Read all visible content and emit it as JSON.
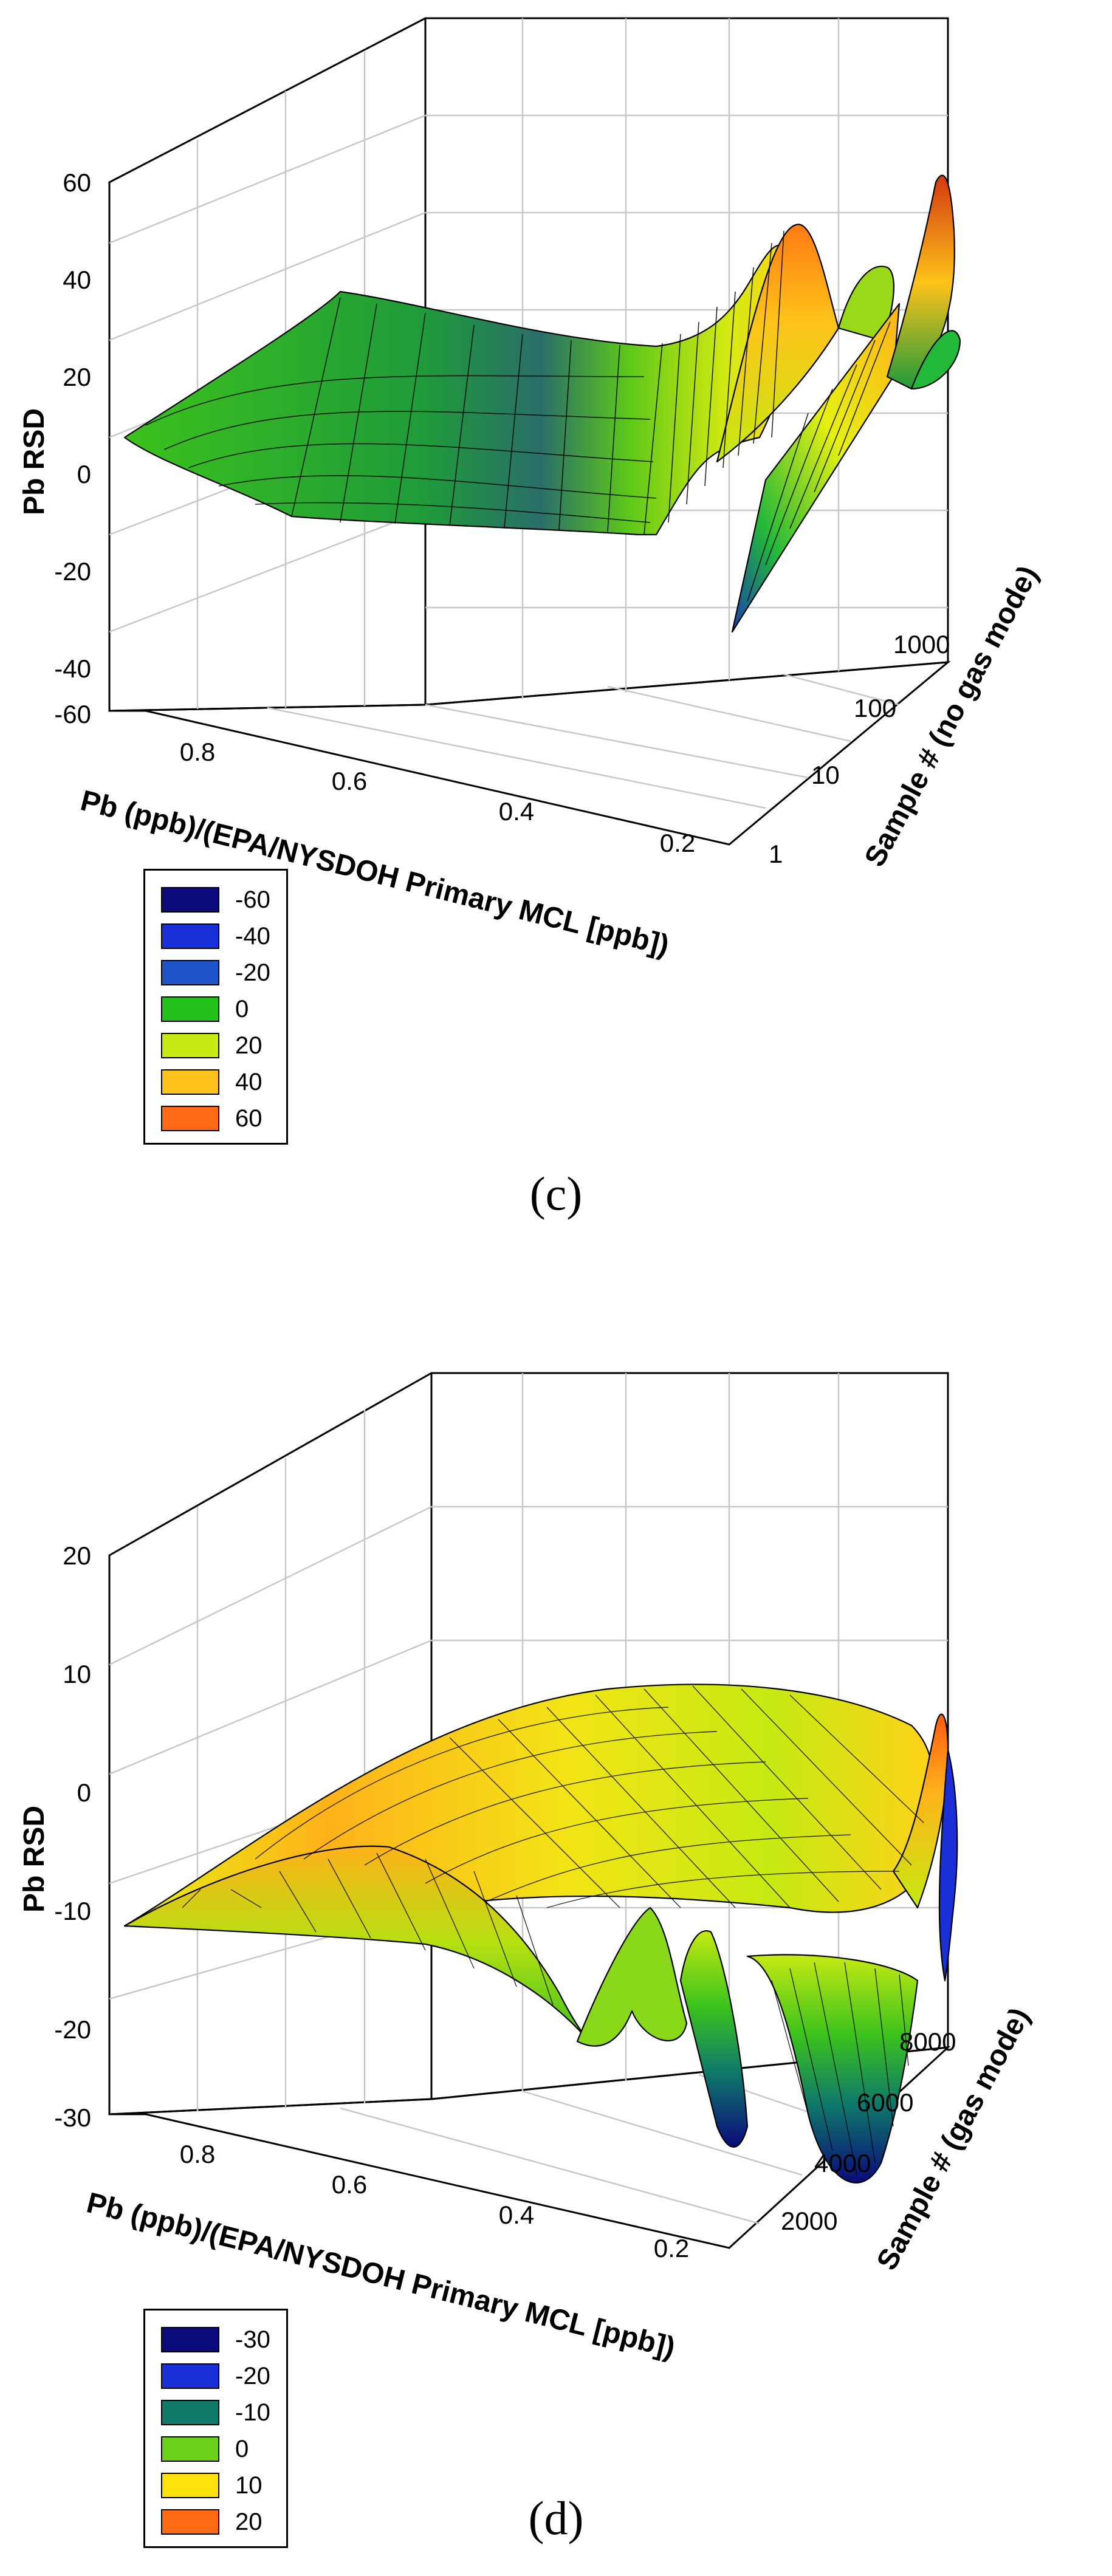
{
  "chart_data": [
    {
      "type": "surface3d",
      "panel_label": "(c)",
      "zlabel": "Pb RSD",
      "xlabel": "Pb (ppb)/(EPA/NYSDOH Primary MCL [ppb])",
      "ylabel": "Sample # (no gas mode)",
      "z_ticks": [
        "60",
        "40",
        "20",
        "0",
        "-20",
        "-40",
        "-60"
      ],
      "zlim": [
        -60,
        60
      ],
      "x_ticks": [
        "0.8",
        "0.6",
        "0.4",
        "0.2"
      ],
      "y_ticks": [
        "1",
        "10",
        "100",
        "1000"
      ],
      "y_scale": "log",
      "legend": [
        {
          "label": "-60",
          "color": "#0a0a7a"
        },
        {
          "label": "-40",
          "color": "#1a2fd6"
        },
        {
          "label": "-20",
          "color": "#1f55c8"
        },
        {
          "label": "0",
          "color": "#22c01a"
        },
        {
          "label": "20",
          "color": "#c6ea12"
        },
        {
          "label": "40",
          "color": "#ffc21a"
        },
        {
          "label": "60",
          "color": "#ff6a14"
        }
      ]
    },
    {
      "type": "surface3d",
      "panel_label": "(d)",
      "zlabel": "Pb RSD",
      "xlabel": "Pb (ppb)/(EPA/NYSDOH Primary MCL [ppb])",
      "ylabel": "Sample # (gas mode)",
      "z_ticks": [
        "20",
        "10",
        "0",
        "-10",
        "-20",
        "-30"
      ],
      "zlim": [
        -30,
        20
      ],
      "x_ticks": [
        "0.8",
        "0.6",
        "0.4",
        "0.2"
      ],
      "y_ticks": [
        "2000",
        "4000",
        "6000",
        "8000"
      ],
      "y_scale": "linear",
      "legend": [
        {
          "label": "-30",
          "color": "#0a0a7a"
        },
        {
          "label": "-20",
          "color": "#1a2fd6"
        },
        {
          "label": "-10",
          "color": "#0f7a6a"
        },
        {
          "label": "0",
          "color": "#6ad01a"
        },
        {
          "label": "10",
          "color": "#ffe20a"
        },
        {
          "label": "20",
          "color": "#ff6a14"
        }
      ]
    }
  ]
}
